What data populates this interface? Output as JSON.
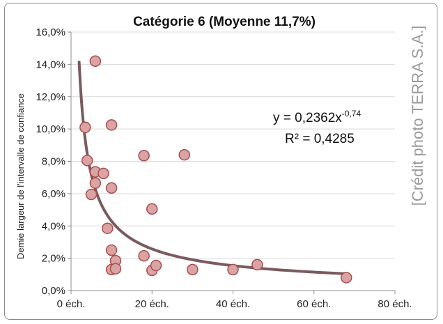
{
  "chart_data": {
    "type": "scatter",
    "title": "Catégorie 6 (Moyenne 11,7%)",
    "xlabel": "",
    "ylabel": "Demie largeur de l'intervalle de confiance",
    "xlim": [
      0,
      80
    ],
    "ylim": [
      0,
      16
    ],
    "x_ticks": [
      "0 éch.",
      "20 éch.",
      "40 éch.",
      "60 éch.",
      "80 éch."
    ],
    "y_ticks": [
      "0,0%",
      "2,0%",
      "4,0%",
      "6,0%",
      "8,0%",
      "10,0%",
      "12,0%",
      "14,0%",
      "16,0%"
    ],
    "grid": "horizontal",
    "points": [
      {
        "x": 6,
        "y": 14.2
      },
      {
        "x": 3.5,
        "y": 10.1
      },
      {
        "x": 10,
        "y": 10.25
      },
      {
        "x": 4,
        "y": 8.05
      },
      {
        "x": 6,
        "y": 7.35
      },
      {
        "x": 8,
        "y": 7.25
      },
      {
        "x": 6,
        "y": 6.65
      },
      {
        "x": 10,
        "y": 6.35
      },
      {
        "x": 5,
        "y": 5.95
      },
      {
        "x": 18,
        "y": 8.35
      },
      {
        "x": 28,
        "y": 8.4
      },
      {
        "x": 20,
        "y": 5.05
      },
      {
        "x": 9,
        "y": 3.85
      },
      {
        "x": 10,
        "y": 2.5
      },
      {
        "x": 11,
        "y": 1.85
      },
      {
        "x": 10,
        "y": 1.3
      },
      {
        "x": 11,
        "y": 1.35
      },
      {
        "x": 18,
        "y": 2.15
      },
      {
        "x": 20,
        "y": 1.25
      },
      {
        "x": 21,
        "y": 1.55
      },
      {
        "x": 30,
        "y": 1.3
      },
      {
        "x": 40,
        "y": 1.3
      },
      {
        "x": 46,
        "y": 1.6
      },
      {
        "x": 68,
        "y": 0.8
      }
    ],
    "trendline": {
      "type": "power",
      "coefficient": 0.2362,
      "exponent": -0.74,
      "x_range": [
        2,
        68
      ],
      "equation_base": "y = 0,2362x",
      "equation_exponent": "-0,74",
      "r2_label": "R² = 0,4285"
    },
    "colors": {
      "marker_fill": "#dba3a3",
      "marker_stroke": "#a64e4e",
      "trendline": "#7a5a5e",
      "grid": "#d9d9d9",
      "axis": "#8c8c8c"
    }
  },
  "credit": "[Crédit photo TERRA S.A.]"
}
